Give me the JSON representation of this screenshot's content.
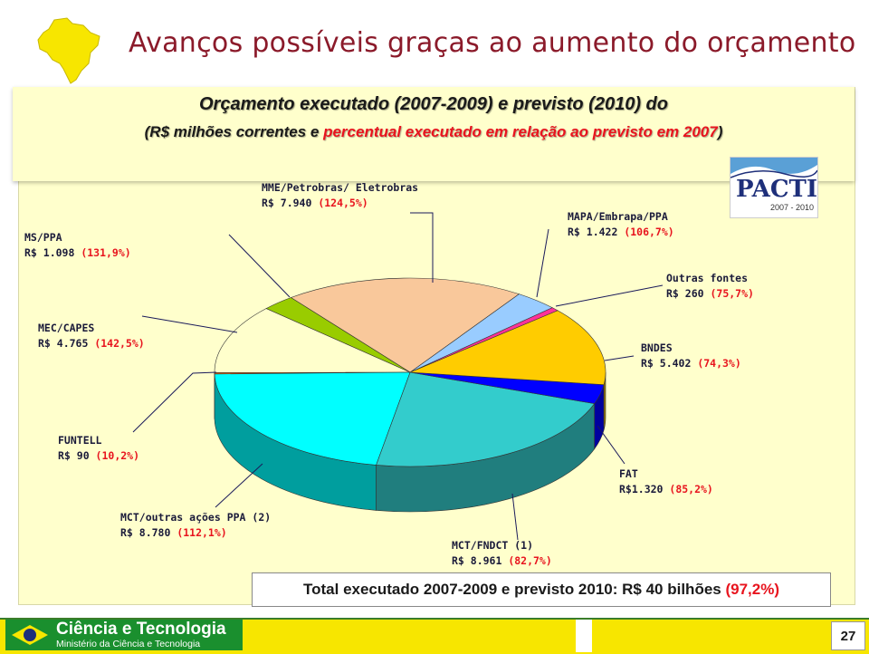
{
  "slide": {
    "title": "Avanços possíveis graças ao aumento do orçamento",
    "heading_line1": "Orçamento executado (2007-2009) e previsto (2010) do",
    "heading_line2_a": "(R$ milhões correntes e ",
    "heading_line2_b": "percentual executado em relação ao previsto em 2007",
    "heading_line2_c": ")",
    "total_a": "Total executado 2007-2009 e previsto 2010: R$ 40 bilhões ",
    "total_b": "(97,2%)",
    "page_number": "27"
  },
  "pacti_logo": {
    "word": "PACTI",
    "years": "2007 - 2010"
  },
  "footer": {
    "title": "Ciência e Tecnologia",
    "subtitle": "Ministério da Ciência e Tecnologia"
  },
  "colors": {
    "title": "#8b1a2a",
    "accent_red": "#e8141e",
    "panel": "#ffffcc",
    "footer_yellow": "#f7e600",
    "footer_green": "#1a8f2e"
  },
  "chart_data": {
    "type": "pie",
    "style": "3d-exploded",
    "slices": [
      {
        "name": "MCT/FNDCT (1)",
        "value_label": "R$ 8.961",
        "value": 8961,
        "pct_label": "(82,7%)",
        "color": "#33cccc"
      },
      {
        "name": "FAT",
        "value_label": "R$1.320",
        "value": 1320,
        "pct_label": "(85,2%)",
        "color": "#0000ff"
      },
      {
        "name": "BNDES",
        "value_label": "R$ 5.402",
        "value": 5402,
        "pct_label": "(74,3%)",
        "color": "#ffcc00"
      },
      {
        "name": "Outras fontes",
        "value_label": "R$ 260",
        "value": 260,
        "pct_label": "(75,7%)",
        "color": "#ff3399"
      },
      {
        "name": "MAPA/Embrapa/PPA",
        "value_label": "R$ 1.422",
        "value": 1422,
        "pct_label": "(106,7%)",
        "color": "#99ccff"
      },
      {
        "name": "MME/Petrobras/ Eletrobras",
        "value_label": "R$ 7.940",
        "value": 7940,
        "pct_label": "(124,5%)",
        "color": "#f9c89b"
      },
      {
        "name": "MS/PPA",
        "value_label": "R$ 1.098",
        "value": 1098,
        "pct_label": "(131,9%)",
        "color": "#99cc00"
      },
      {
        "name": "MEC/CAPES",
        "value_label": "R$ 4.765",
        "value": 4765,
        "pct_label": "(142,5%)",
        "color": "#ffffcc"
      },
      {
        "name": "FUNTELL",
        "value_label": "R$ 90",
        "value": 90,
        "pct_label": "(10,2%)",
        "color": "#ff6600"
      },
      {
        "name": "MCT/outras ações PPA (2)",
        "value_label": "R$ 8.780",
        "value": 8780,
        "pct_label": "(112,1%)",
        "color": "#00ffff"
      }
    ]
  }
}
